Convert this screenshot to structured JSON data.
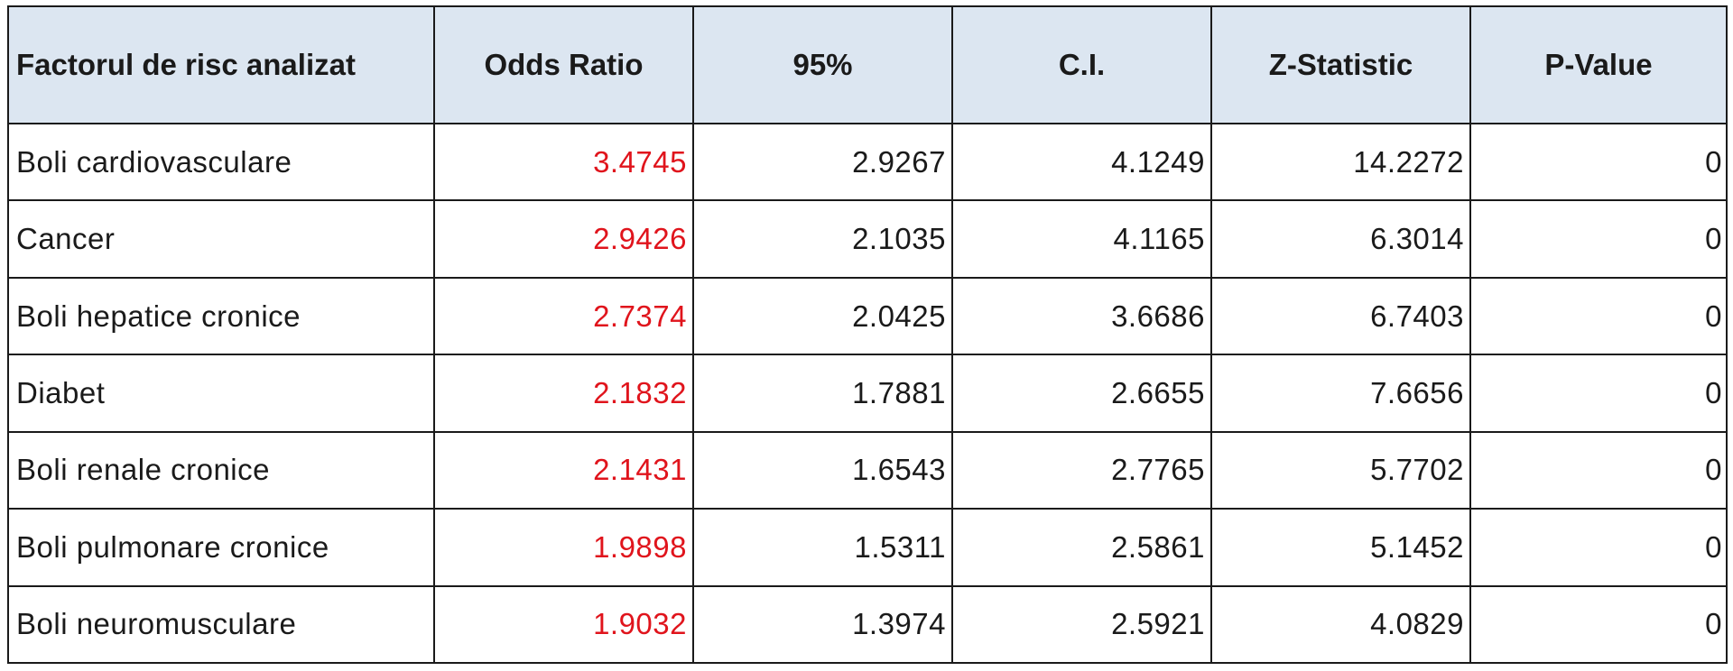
{
  "table": {
    "headers": [
      "Factorul de risc analizat",
      "Odds Ratio",
      "95%",
      "C.I.",
      "Z-Statistic",
      "P-Value"
    ],
    "rows": [
      [
        "Boli cardiovasculare",
        "3.4745",
        "2.9267",
        "4.1249",
        "14.2272",
        "0"
      ],
      [
        "Cancer",
        "2.9426",
        "2.1035",
        "4.1165",
        "6.3014",
        "0"
      ],
      [
        "Boli hepatice cronice",
        "2.7374",
        "2.0425",
        "3.6686",
        "6.7403",
        "0"
      ],
      [
        "Diabet",
        "2.1832",
        "1.7881",
        "2.6655",
        "7.6656",
        "0"
      ],
      [
        "Boli renale cronice",
        "2.1431",
        "1.6543",
        "2.7765",
        "5.7702",
        "0"
      ],
      [
        "Boli pulmonare cronice",
        "1.9898",
        "1.5311",
        "2.5861",
        "5.1452",
        "0"
      ],
      [
        "Boli neuromusculare",
        "1.9032",
        "1.3974",
        "2.5921",
        "4.0829",
        "0"
      ]
    ],
    "colors": {
      "header_background": "#dce6f1",
      "odds_ratio_text": "#e0141c",
      "grid": "#1a1a1a"
    }
  }
}
